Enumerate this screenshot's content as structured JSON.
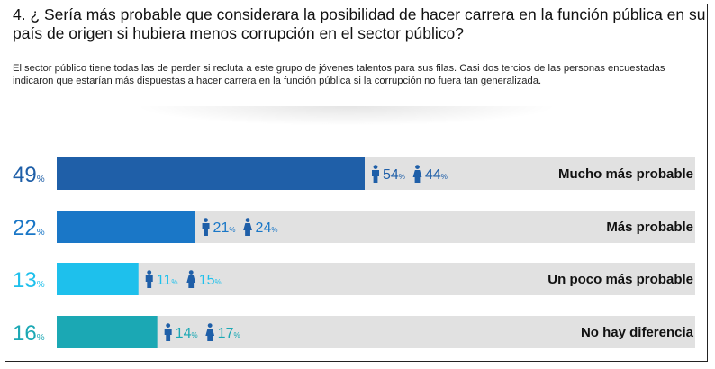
{
  "question": "4. ¿ Sería más probable que considerara la posibilidad de hacer carrera en la función pública en su país de origen si hubiera menos corrupción en el sector público?",
  "intro": "El sector público tiene todas las de perder si recluta a este grupo de jóvenes talentos para sus filas. Casi dos tercios de las personas encuestadas indicaron que estarían más dispuestas a hacer carrera en la función pública si la corrupción no fuera tan generalizada.",
  "colors": {
    "track": "#e1e1e1",
    "men_icon": "#1f5fa8",
    "women_icon": "#1f5fa8",
    "label": "#111111"
  },
  "chart_data": {
    "type": "bar",
    "orientation": "horizontal",
    "value_max": 100,
    "percent_symbol": "%",
    "categories": [
      "Mucho más probable",
      "Más probable",
      "Un poco más probable",
      "No hay diferencia"
    ],
    "values": [
      49,
      22,
      13,
      16
    ],
    "series": [
      {
        "name": "total",
        "values": [
          49,
          22,
          13,
          16
        ]
      },
      {
        "name": "men",
        "icon": "man-icon",
        "values": [
          54,
          21,
          11,
          14
        ]
      },
      {
        "name": "women",
        "icon": "woman-icon",
        "values": [
          44,
          24,
          15,
          17
        ]
      }
    ],
    "bar_colors": [
      "#1f5fa8",
      "#1a77c7",
      "#1ec0ec",
      "#1ba8b4"
    ],
    "value_colors": [
      "#1f5fa8",
      "#1a77c7",
      "#1ec0ec",
      "#1ba8b4"
    ]
  }
}
